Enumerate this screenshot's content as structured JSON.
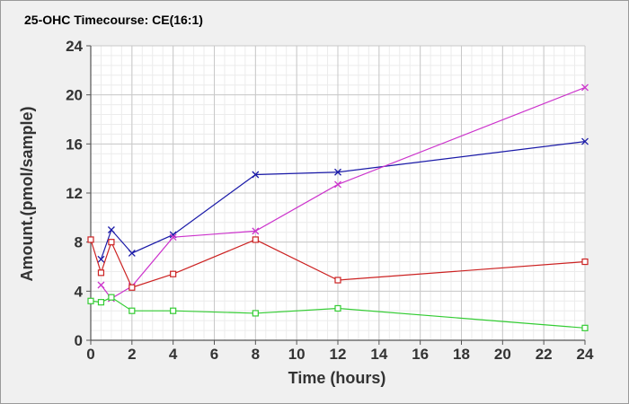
{
  "chart_data": {
    "type": "line",
    "title": "25-OHC Timecourse: CE(16:1)",
    "xlabel": "Time (hours)",
    "ylabel": "Amount.(pmol/sample)",
    "xlim": [
      0,
      24
    ],
    "ylim": [
      0,
      24
    ],
    "x_ticks": [
      0,
      2,
      4,
      6,
      8,
      10,
      12,
      14,
      16,
      18,
      20,
      22,
      24
    ],
    "y_ticks": [
      0,
      4,
      8,
      12,
      16,
      20,
      24
    ],
    "grid": true,
    "series": [
      {
        "color": "#1a1aa8",
        "marker": "x",
        "x": [
          0.5,
          1,
          2,
          4,
          8,
          12,
          24
        ],
        "y": [
          6.6,
          9.0,
          7.1,
          8.6,
          13.5,
          13.7,
          16.2
        ]
      },
      {
        "color": "#cc33cc",
        "marker": "x",
        "x": [
          0.5,
          1,
          2,
          4,
          8,
          12,
          24
        ],
        "y": [
          4.5,
          3.4,
          4.4,
          8.4,
          8.9,
          12.7,
          20.6
        ]
      },
      {
        "color": "#cc2222",
        "marker": "square",
        "x": [
          0,
          0.5,
          1,
          2,
          4,
          8,
          12,
          24
        ],
        "y": [
          8.2,
          5.5,
          8.0,
          4.3,
          5.4,
          8.2,
          4.9,
          6.4
        ]
      },
      {
        "color": "#33cc33",
        "marker": "square",
        "x": [
          0,
          0.5,
          1,
          2,
          4,
          8,
          12,
          24
        ],
        "y": [
          3.2,
          3.1,
          3.5,
          2.4,
          2.4,
          2.2,
          2.6,
          1.0
        ]
      }
    ]
  }
}
